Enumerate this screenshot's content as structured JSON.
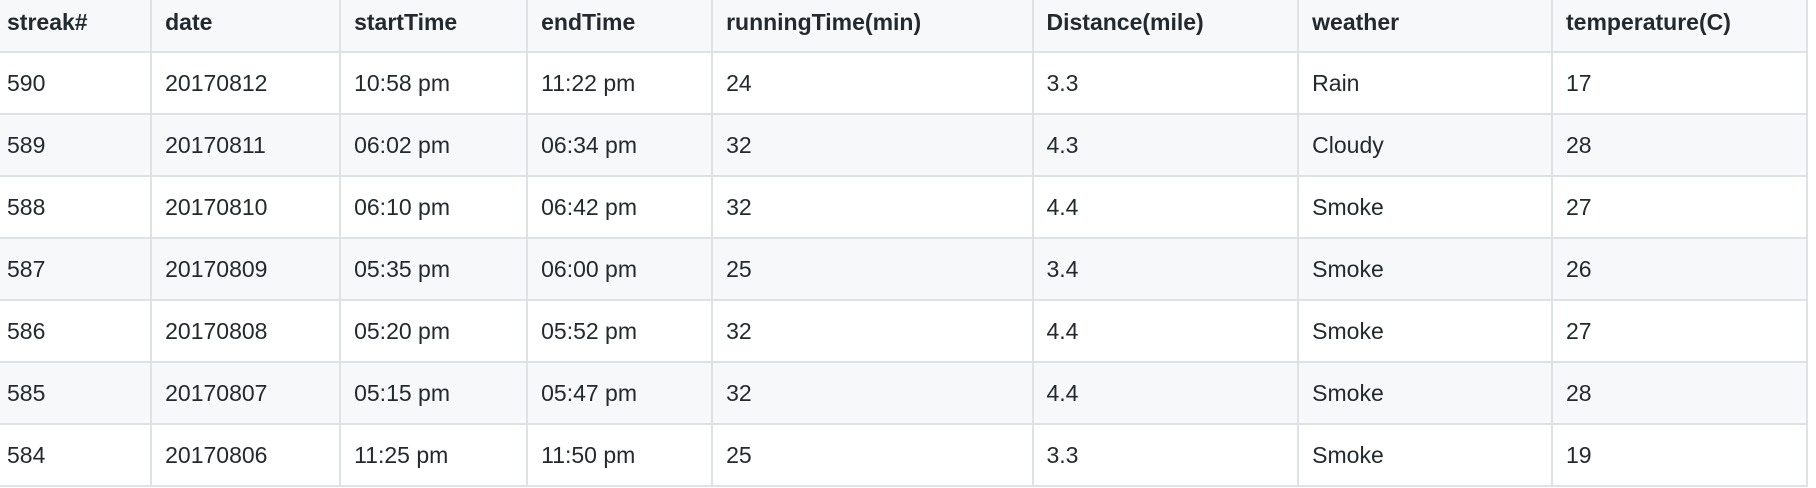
{
  "table": {
    "headers": [
      "streak#",
      "date",
      "startTime",
      "endTime",
      "runningTime(min)",
      "Distance(mile)",
      "weather",
      "temperature(C)"
    ],
    "rows": [
      [
        "590",
        "20170812",
        "10:58 pm",
        "11:22 pm",
        "24",
        "3.3",
        "Rain",
        "17"
      ],
      [
        "589",
        "20170811",
        "06:02 pm",
        "06:34 pm",
        "32",
        "4.3",
        "Cloudy",
        "28"
      ],
      [
        "588",
        "20170810",
        "06:10 pm",
        "06:42 pm",
        "32",
        "4.4",
        "Smoke",
        "27"
      ],
      [
        "587",
        "20170809",
        "05:35 pm",
        "06:00 pm",
        "25",
        "3.4",
        "Smoke",
        "26"
      ],
      [
        "586",
        "20170808",
        "05:20 pm",
        "05:52 pm",
        "32",
        "4.4",
        "Smoke",
        "27"
      ],
      [
        "585",
        "20170807",
        "05:15 pm",
        "05:47 pm",
        "32",
        "4.4",
        "Smoke",
        "28"
      ],
      [
        "584",
        "20170806",
        "11:25 pm",
        "11:50 pm",
        "25",
        "3.3",
        "Smoke",
        "19"
      ]
    ]
  },
  "colors": {
    "text": "#24292e",
    "border": "#dfe2e5",
    "header_bg": "#f6f8fa",
    "stripe_bg": "#f6f8fa",
    "row_bg": "#ffffff"
  }
}
